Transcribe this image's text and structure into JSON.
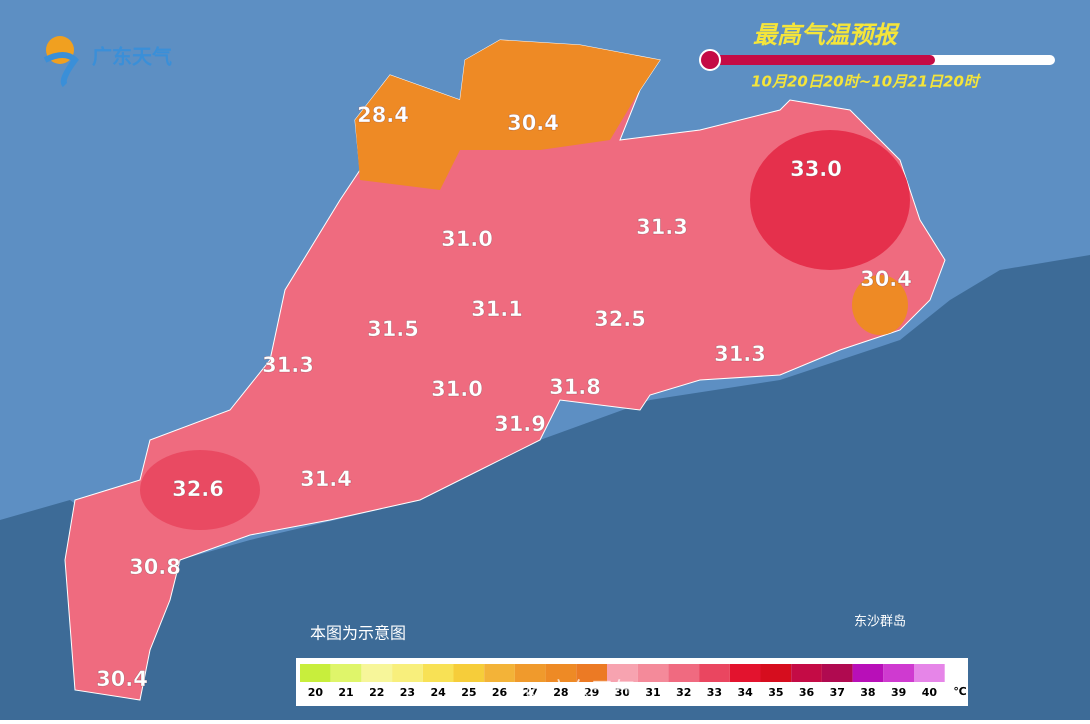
{
  "logo": "广东天气",
  "title": "最高气温预报",
  "period": "10月20日20时~10月21日20时",
  "labels": [
    "28.4",
    "30.4",
    "33.0",
    "31.0",
    "31.3",
    "30.4",
    "31.1",
    "31.5",
    "32.5",
    "31.3",
    "31.3",
    "31.0",
    "31.8",
    "31.9",
    "32.6",
    "31.4",
    "30.8",
    "30.4"
  ],
  "note": "本图为示意图",
  "island": "东沙群岛",
  "watermark": "@广东天气",
  "legend": {
    "unit": "℃",
    "items": [
      {
        "label": "20",
        "color": "#c8ee3c"
      },
      {
        "label": "21",
        "color": "#dff56a"
      },
      {
        "label": "22",
        "color": "#f7f69a"
      },
      {
        "label": "23",
        "color": "#f8ef7c"
      },
      {
        "label": "24",
        "color": "#f8e155"
      },
      {
        "label": "25",
        "color": "#f6cd3a"
      },
      {
        "label": "26",
        "color": "#f3b338"
      },
      {
        "label": "27",
        "color": "#f09a2c"
      },
      {
        "label": "28",
        "color": "#ee8a25"
      },
      {
        "label": "29",
        "color": "#ec7a24"
      },
      {
        "label": "30",
        "color": "#f7a3b0"
      },
      {
        "label": "31",
        "color": "#f48a9a"
      },
      {
        "label": "32",
        "color": "#f06a80"
      },
      {
        "label": "33",
        "color": "#ea4660"
      },
      {
        "label": "34",
        "color": "#e3132e"
      },
      {
        "label": "35",
        "color": "#d60d1e"
      },
      {
        "label": "36",
        "color": "#c40b45"
      },
      {
        "label": "37",
        "color": "#b00a50"
      },
      {
        "label": "38",
        "color": "#b80fb8"
      },
      {
        "label": "39",
        "color": "#cf3ad0"
      },
      {
        "label": "40",
        "color": "#e685e8"
      }
    ]
  }
}
